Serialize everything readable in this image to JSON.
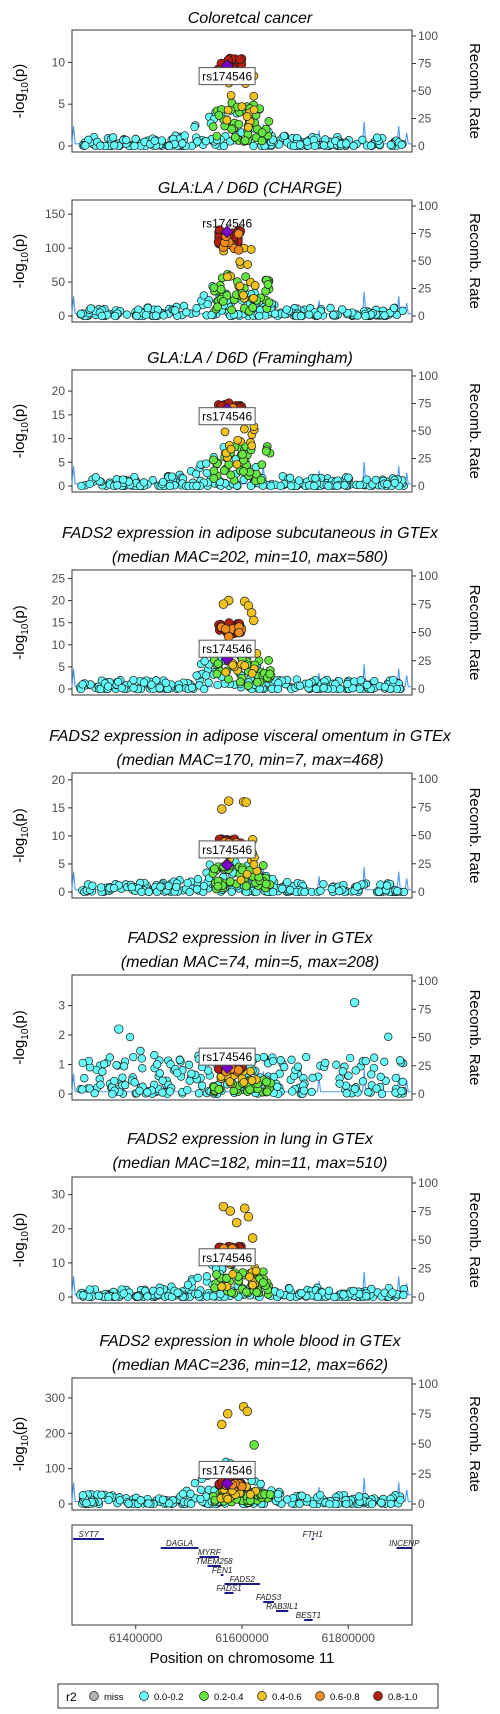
{
  "chart_data": {
    "type": "scatter",
    "chromosome": "11",
    "lead_snp": "rs174546",
    "xlabel": "Position on chromosome 11",
    "x_ticks": [
      61400000,
      61600000,
      61800000
    ],
    "xlim": [
      61280000,
      61920000
    ],
    "y2_label": "Recomb. Rate",
    "y2_ticks": [
      0,
      25,
      50,
      75,
      100
    ],
    "y2lim": [
      0,
      100
    ],
    "ylabel_base": "-log",
    "ylabel_sub": "10",
    "ylabel_tail": "(p)",
    "legend": {
      "title": "r2",
      "items": [
        {
          "label": "miss",
          "color": "#b3b3b3"
        },
        {
          "label": "0.0-0.2",
          "color": "#66ffff"
        },
        {
          "label": "0.2-0.4",
          "color": "#66e640"
        },
        {
          "label": "0.4-0.6",
          "color": "#f2c21f"
        },
        {
          "label": "0.6-0.8",
          "color": "#f28c1a"
        },
        {
          "label": "0.8-1.0",
          "color": "#b32012"
        }
      ]
    },
    "panels": [
      {
        "title1": "Coloretcal cancer",
        "title2": "",
        "yticks": [
          0,
          5,
          10
        ],
        "ylim": [
          0,
          13.4
        ],
        "peak": 10.5,
        "lead": 9.6,
        "label_y": 8.3,
        "high_cluster": [],
        "spread": "low"
      },
      {
        "title1": "GLA:LA / D6D (CHARGE)",
        "title2": "",
        "yticks": [
          0,
          50,
          100,
          150
        ],
        "ylim": [
          0,
          165
        ],
        "peak": 128,
        "lead": 124,
        "label_y": 136,
        "high_cluster": [],
        "spread": "mid"
      },
      {
        "title1": "GLA:LA / D6D (Framingham)",
        "title2": "",
        "yticks": [
          0,
          5,
          10,
          15,
          20
        ],
        "ylim": [
          0,
          23.6
        ],
        "peak": 17.5,
        "lead": 16.2,
        "label_y": 14.6,
        "high_cluster": [],
        "spread": "mid"
      },
      {
        "title1": "FADS2 expression in adipose subcutaneous in GTEx",
        "title2": "(median MAC=202, min=10, max=580)",
        "yticks": [
          0,
          5,
          10,
          15,
          20,
          25
        ],
        "ylim": [
          0,
          26
        ],
        "peak": 15,
        "lead": 6.8,
        "label_y": 9,
        "high_cluster": [
          [
            61575000,
            20
          ],
          [
            61565000,
            19.2
          ],
          [
            61605000,
            19.8
          ],
          [
            61612000,
            18.8
          ],
          [
            61618000,
            17.2
          ],
          [
            61622000,
            15.5
          ]
        ],
        "spread": "mid"
      },
      {
        "title1": "FADS2 expression in adipose visceral omentum in GTEx",
        "title2": "(median MAC=170, min=7, max=468)",
        "yticks": [
          0,
          5,
          10,
          15,
          20
        ],
        "ylim": [
          0,
          20.5
        ],
        "peak": 9.5,
        "lead": 4.8,
        "label_y": 7.5,
        "high_cluster": [
          [
            61562000,
            14.8
          ],
          [
            61575000,
            16.2
          ],
          [
            61603000,
            16.1
          ],
          [
            61608000,
            16.0
          ],
          [
            61620000,
            9.3
          ]
        ],
        "spread": "mid"
      },
      {
        "title1": "FADS2 expression in liver in GTEx",
        "title2": "(median MAC=74, min=5, max=208)",
        "yticks": [
          0,
          1,
          2,
          3
        ],
        "ylim": [
          0,
          3.9
        ],
        "peak": 1.0,
        "lead": 0.9,
        "label_y": 1.25,
        "high_cluster": [],
        "spread": "liver"
      },
      {
        "title1": "FADS2 expression in lung in GTEx",
        "title2": "(median MAC=182, min=11, max=510)",
        "yticks": [
          0,
          10,
          20,
          30
        ],
        "ylim": [
          0,
          34
        ],
        "peak": 15,
        "lead": 10.5,
        "label_y": 11.5,
        "high_cluster": [
          [
            61565000,
            26.5
          ],
          [
            61578000,
            25.2
          ],
          [
            61590000,
            21.8
          ],
          [
            61605000,
            26.0
          ],
          [
            61612000,
            23.5
          ],
          [
            61620000,
            17.3
          ]
        ],
        "spread": "mid"
      },
      {
        "title1": "FADS2 expression in whole blood in GTEx",
        "title2": "(median MAC=236, min=12, max=662)",
        "yticks": [
          0,
          100,
          200,
          300
        ],
        "ylim": [
          0,
          345
        ],
        "peak": 65,
        "lead": 58,
        "label_y": 95,
        "high_cluster": [
          [
            61562000,
            225
          ],
          [
            61573000,
            255
          ],
          [
            61603000,
            275
          ],
          [
            61610000,
            262
          ],
          [
            61623000,
            167
          ]
        ],
        "spread": "mid"
      }
    ],
    "genes": [
      {
        "name": "SYT7",
        "start": 61282000,
        "end": 61340000,
        "row": 0
      },
      {
        "name": "FTH1",
        "start": 61731000,
        "end": 61735000,
        "row": 0
      },
      {
        "name": "INCENP",
        "start": 61891000,
        "end": 61920000,
        "row": 1
      },
      {
        "name": "DAGLA",
        "start": 61447000,
        "end": 61518000,
        "row": 1
      },
      {
        "name": "MYRF",
        "start": 61520000,
        "end": 61557000,
        "row": 2
      },
      {
        "name": "TMEM258",
        "start": 61535000,
        "end": 61560000,
        "row": 3
      },
      {
        "name": "FEN1",
        "start": 61560000,
        "end": 61565000,
        "row": 4
      },
      {
        "name": "FADS2",
        "start": 61567000,
        "end": 61634000,
        "row": 5
      },
      {
        "name": "FADS1",
        "start": 61567000,
        "end": 61584000,
        "row": 6
      },
      {
        "name": "FADS3",
        "start": 61640000,
        "end": 61660000,
        "row": 7
      },
      {
        "name": "RAB3IL1",
        "start": 61664000,
        "end": 61687000,
        "row": 8
      },
      {
        "name": "BEST1",
        "start": 61717000,
        "end": 61733000,
        "row": 9
      }
    ]
  }
}
